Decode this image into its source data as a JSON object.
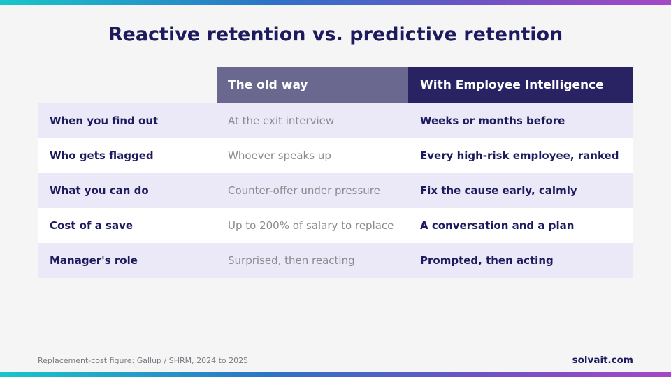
{
  "title": "Reactive retention vs. predictive retention",
  "table": {
    "header_old": "The old way",
    "header_new": "With Employee Intelligence",
    "rows": [
      {
        "label": "When you find out",
        "old": "At the exit interview",
        "new": "Weeks or months before"
      },
      {
        "label": "Who gets flagged",
        "old": "Whoever speaks up",
        "new": "Every high-risk employee, ranked"
      },
      {
        "label": "What you can do",
        "old": "Counter-offer under pressure",
        "new": "Fix the cause early, calmly"
      },
      {
        "label": "Cost of a save",
        "old": "Up to 200% of salary to replace",
        "new": "A conversation and a plan"
      },
      {
        "label": "Manager's role",
        "old": "Surprised, then reacting",
        "new": "Prompted, then acting"
      }
    ]
  },
  "footnote": "Replacement-cost figure: Gallup / SHRM, 2024 to 2025",
  "brand": "solvait.com",
  "colors": {
    "title": "#1d1a5e",
    "header_old_bg": "#6b6890",
    "header_new_bg": "#2a2363",
    "row_shaded_bg": "#ebe9f7",
    "old_text": "#8a8a90"
  }
}
